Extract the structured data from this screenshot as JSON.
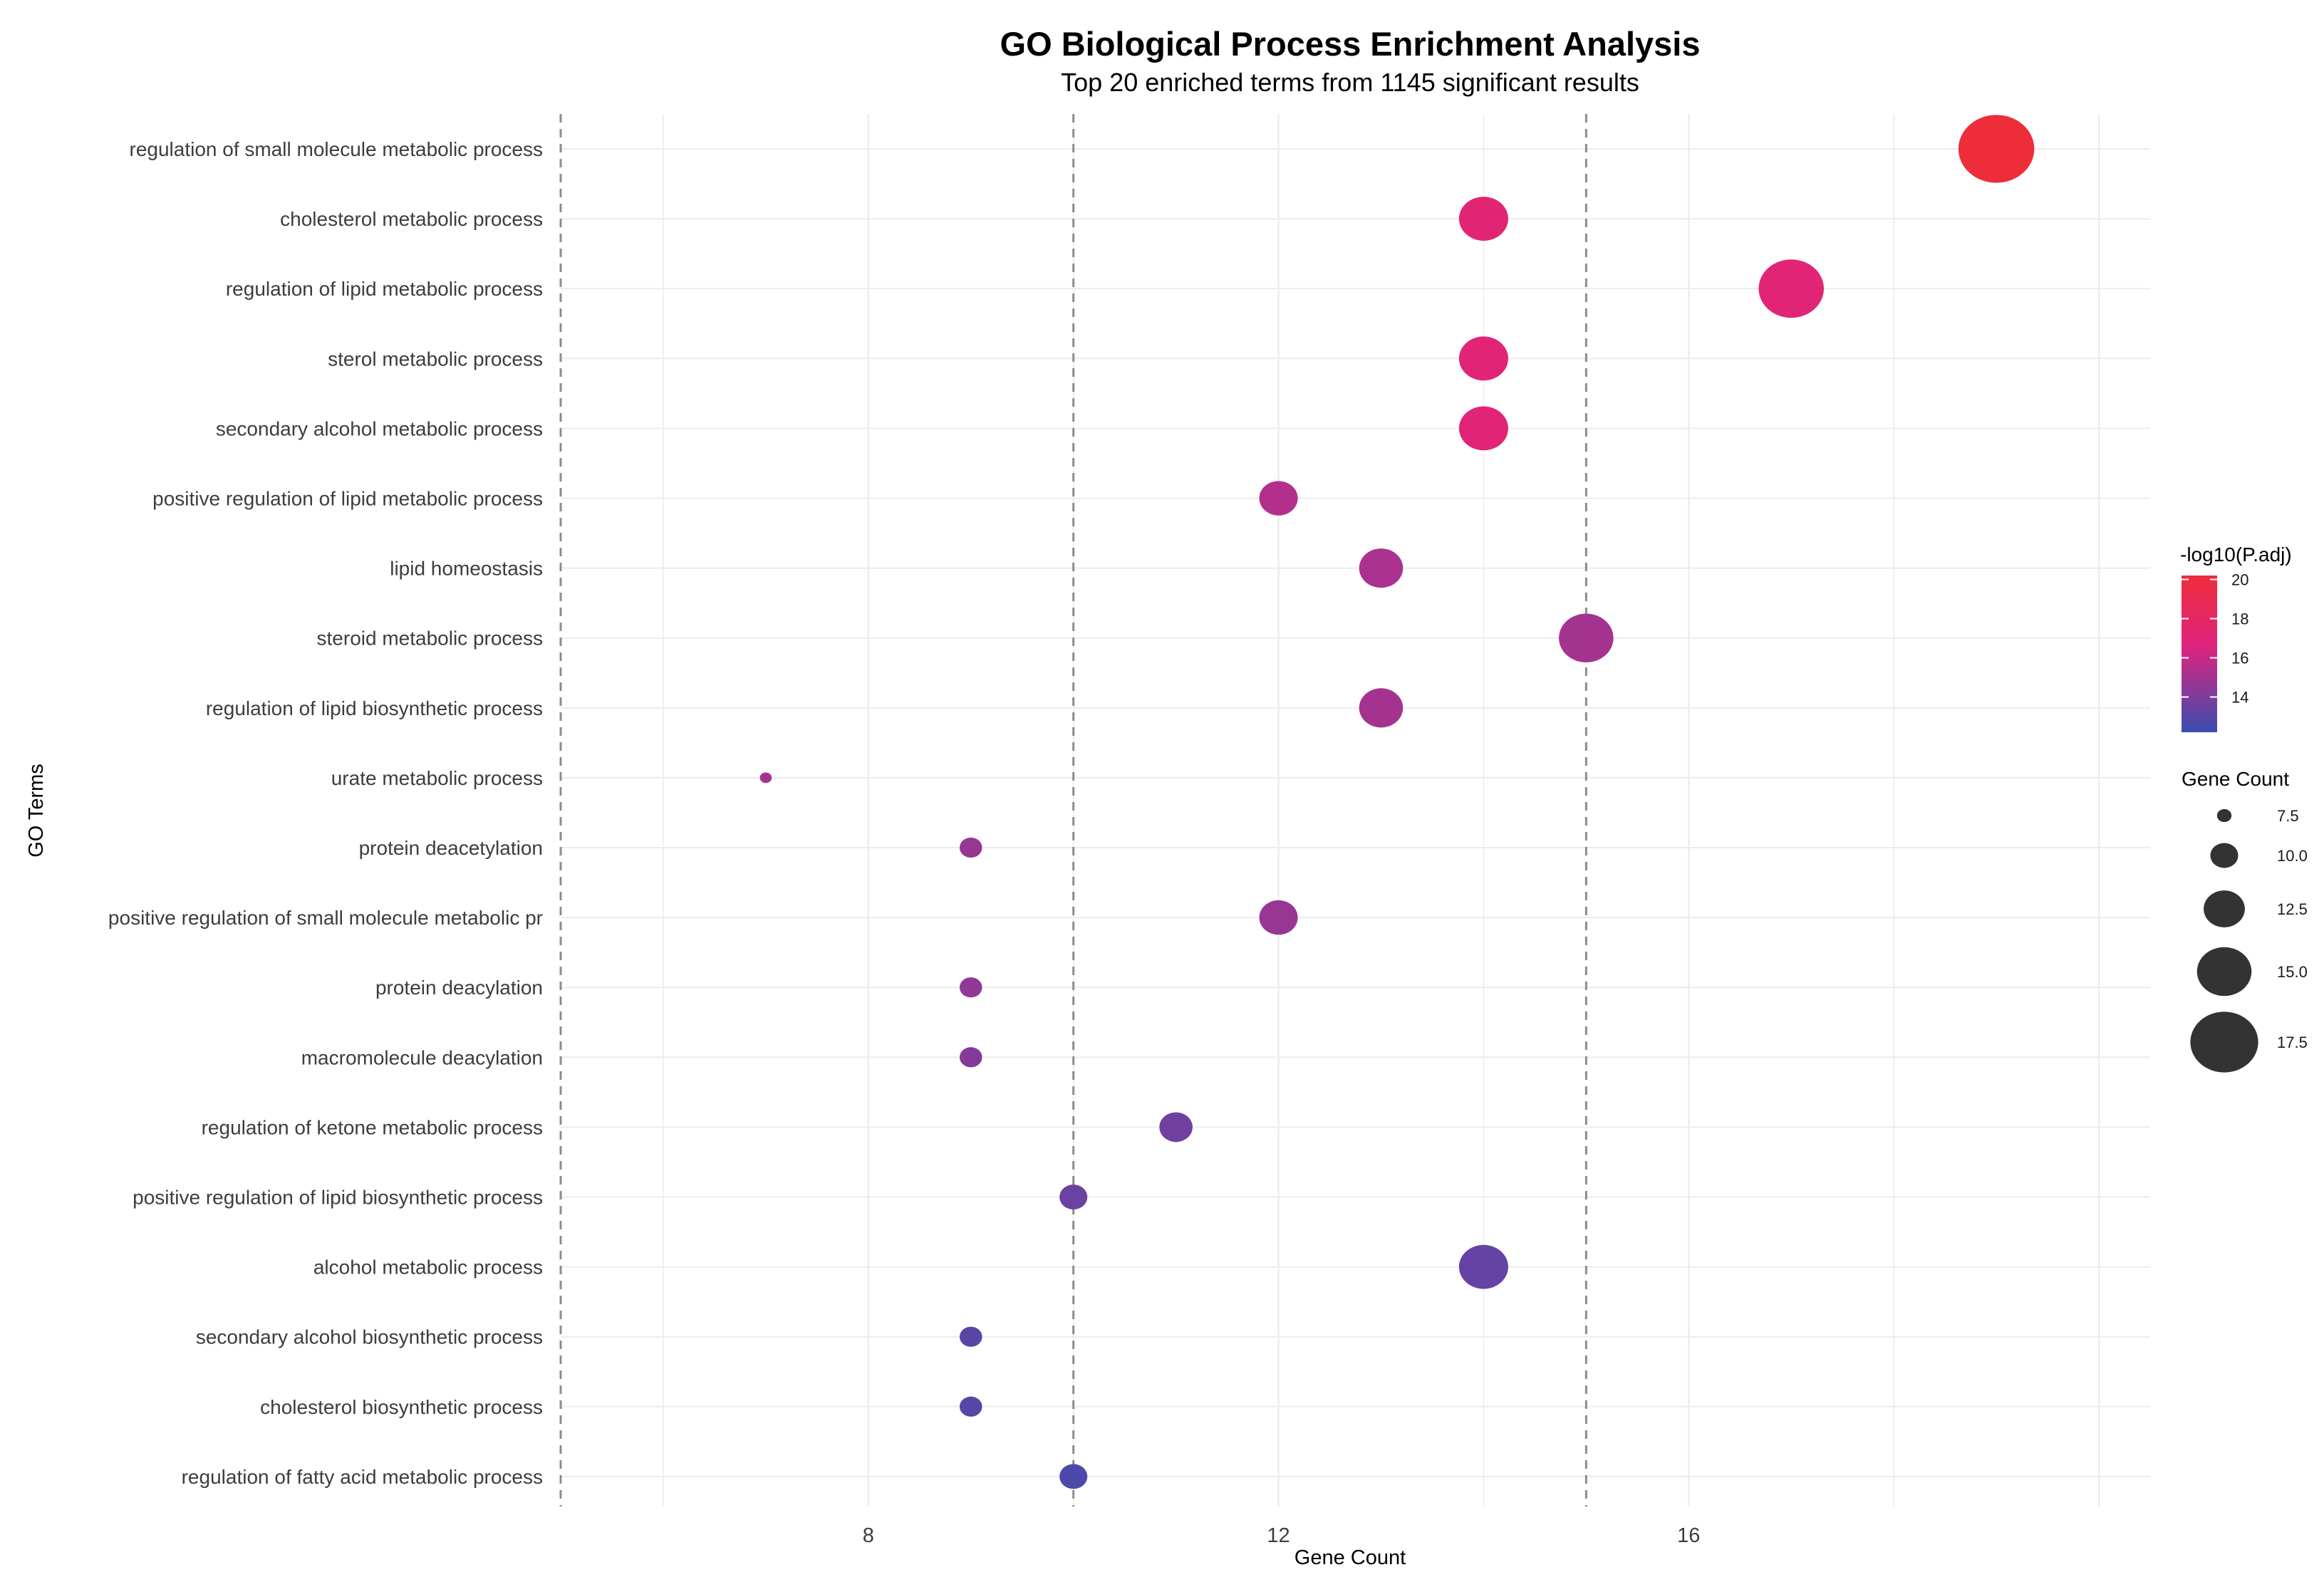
{
  "chart_data": {
    "type": "scatter",
    "title": "GO Biological Process Enrichment Analysis",
    "subtitle": "Top 20 enriched terms from 1145 significant results",
    "xlabel": "Gene Count",
    "ylabel": "GO Terms",
    "xlim": [
      5,
      20.5
    ],
    "x_ticks": [
      8,
      12,
      16
    ],
    "x_tick_labels": [
      "8",
      "12",
      "16"
    ],
    "reference_lines_x": [
      5,
      10,
      15
    ],
    "grid": true,
    "points": [
      {
        "term": "regulation of small molecule metabolic process",
        "count": 19,
        "neglog10_padj": 20.2
      },
      {
        "term": "cholesterol metabolic process",
        "count": 14,
        "neglog10_padj": 17.2
      },
      {
        "term": "regulation of lipid metabolic process",
        "count": 17,
        "neglog10_padj": 17.0
      },
      {
        "term": "sterol metabolic process",
        "count": 14,
        "neglog10_padj": 17.0
      },
      {
        "term": "secondary alcohol metabolic process",
        "count": 14,
        "neglog10_padj": 17.0
      },
      {
        "term": "positive regulation of lipid metabolic process",
        "count": 12,
        "neglog10_padj": 15.4
      },
      {
        "term": "lipid homeostasis",
        "count": 13,
        "neglog10_padj": 15.2
      },
      {
        "term": "steroid metabolic process",
        "count": 15,
        "neglog10_padj": 15.0
      },
      {
        "term": "regulation of lipid biosynthetic process",
        "count": 13,
        "neglog10_padj": 15.0
      },
      {
        "term": "urate metabolic process",
        "count": 7,
        "neglog10_padj": 15.0
      },
      {
        "term": "protein deacetylation",
        "count": 9,
        "neglog10_padj": 14.7
      },
      {
        "term": "positive regulation of small molecule metabolic pr",
        "count": 12,
        "neglog10_padj": 14.7
      },
      {
        "term": "protein deacylation",
        "count": 9,
        "neglog10_padj": 14.5
      },
      {
        "term": "macromolecule deacylation",
        "count": 9,
        "neglog10_padj": 14.2
      },
      {
        "term": "regulation of ketone metabolic process",
        "count": 11,
        "neglog10_padj": 13.6
      },
      {
        "term": "positive regulation of lipid biosynthetic process",
        "count": 10,
        "neglog10_padj": 13.5
      },
      {
        "term": "alcohol metabolic process",
        "count": 14,
        "neglog10_padj": 13.3
      },
      {
        "term": "secondary alcohol biosynthetic process",
        "count": 9,
        "neglog10_padj": 13.0
      },
      {
        "term": "cholesterol biosynthetic process",
        "count": 9,
        "neglog10_padj": 13.0
      },
      {
        "term": "regulation of fatty acid metabolic process",
        "count": 10,
        "neglog10_padj": 12.7
      }
    ],
    "color_legend": {
      "title": "-log10(P.adj)",
      "range": [
        12.2,
        20.2
      ],
      "breaks": [
        20,
        18,
        16,
        14
      ],
      "break_labels": [
        "20",
        "18",
        "16",
        "14"
      ],
      "low_color": "#3a4eb0",
      "mid_color": "#e0237e",
      "high_color": "#ee2d3a"
    },
    "size_legend": {
      "title": "Gene Count",
      "breaks": [
        7.5,
        10.0,
        12.5,
        15.0,
        17.5
      ],
      "break_labels": [
        "7.5",
        "10.0",
        "12.5",
        "15.0",
        "17.5"
      ],
      "color": "#333333"
    }
  }
}
